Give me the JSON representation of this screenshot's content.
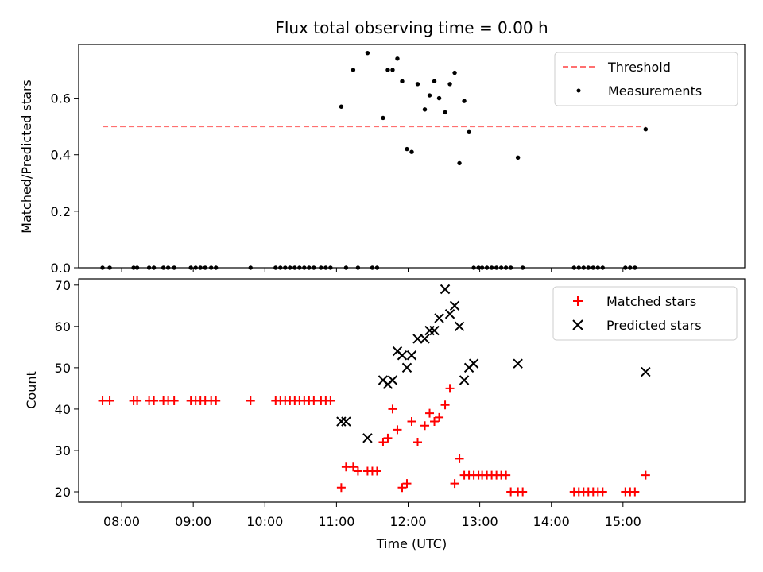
{
  "chart_data": [
    {
      "type": "scatter",
      "title": "Flux total observing time = 0.00 h",
      "xlabel": "",
      "ylabel": "Matched/Predicted stars",
      "ylim": [
        0,
        0.79
      ],
      "xlim": [
        "07:24",
        "16:42"
      ],
      "yticks": [
        "0.0",
        "0.2",
        "0.4",
        "0.6"
      ],
      "ytick_values": [
        0,
        0.2,
        0.4,
        0.6
      ],
      "threshold": {
        "label": "Threshold",
        "value": 0.5,
        "x_start": "07:44",
        "x_end": "15:19",
        "color": "#ff7070"
      },
      "legend": {
        "placement": "top-right",
        "entries": [
          "Threshold",
          "Measurements"
        ]
      },
      "series": [
        {
          "name": "Measurements",
          "color": "#000000",
          "marker": "dot",
          "x": [
            "07:44",
            "07:50",
            "08:10",
            "08:13",
            "08:23",
            "08:27",
            "08:35",
            "08:39",
            "08:44",
            "08:58",
            "09:02",
            "09:06",
            "09:10",
            "09:15",
            "09:19",
            "09:48",
            "10:09",
            "10:13",
            "10:17",
            "10:21",
            "10:25",
            "10:29",
            "10:33",
            "10:37",
            "10:41",
            "10:47",
            "10:51",
            "10:55",
            "11:04",
            "11:08",
            "11:14",
            "11:18",
            "11:26",
            "11:30",
            "11:34",
            "11:39",
            "11:43",
            "11:47",
            "11:51",
            "11:55",
            "11:59",
            "12:03",
            "12:08",
            "12:14",
            "12:18",
            "12:22",
            "12:26",
            "12:31",
            "12:35",
            "12:39",
            "12:43",
            "12:47",
            "12:51",
            "12:55",
            "12:59",
            "13:02",
            "13:06",
            "13:10",
            "13:14",
            "13:18",
            "13:22",
            "13:26",
            "13:32",
            "13:36",
            "14:19",
            "14:23",
            "14:27",
            "14:31",
            "14:35",
            "14:39",
            "14:43",
            "15:02",
            "15:06",
            "15:10",
            "15:19"
          ],
          "y": [
            0,
            0,
            0,
            0,
            0,
            0,
            0,
            0,
            0,
            0,
            0,
            0,
            0,
            0,
            0,
            0,
            0,
            0,
            0,
            0,
            0,
            0,
            0,
            0,
            0,
            0,
            0,
            0,
            0.57,
            0,
            0.7,
            0,
            0.76,
            0,
            0,
            0.53,
            0.7,
            0.7,
            0.74,
            0.66,
            0.42,
            0.41,
            0.65,
            0.56,
            0.61,
            0.66,
            0.6,
            0.55,
            0.65,
            0.69,
            0.37,
            0.59,
            0.48,
            0,
            0,
            0,
            0,
            0,
            0,
            0,
            0,
            0,
            0.39,
            0,
            0,
            0,
            0,
            0,
            0,
            0,
            0,
            0,
            0,
            0,
            0.49
          ]
        }
      ]
    },
    {
      "type": "scatter",
      "title": "",
      "xlabel": "Time (UTC)",
      "ylabel": "Count",
      "ylim": [
        17.5,
        71.5
      ],
      "xlim": [
        "07:24",
        "16:42"
      ],
      "xticks": [
        "08:00",
        "09:00",
        "10:00",
        "11:00",
        "12:00",
        "13:00",
        "14:00",
        "15:00"
      ],
      "yticks": [
        "20",
        "30",
        "40",
        "50",
        "60",
        "70"
      ],
      "ytick_values": [
        20,
        30,
        40,
        50,
        60,
        70
      ],
      "legend": {
        "placement": "top-right",
        "entries": [
          "Matched stars",
          "Predicted stars"
        ]
      },
      "series": [
        {
          "name": "Matched stars",
          "color": "#ff0000",
          "marker": "plus",
          "x": [
            "07:44",
            "07:50",
            "08:10",
            "08:13",
            "08:23",
            "08:27",
            "08:35",
            "08:39",
            "08:44",
            "08:58",
            "09:02",
            "09:06",
            "09:10",
            "09:15",
            "09:19",
            "09:48",
            "10:09",
            "10:13",
            "10:17",
            "10:21",
            "10:25",
            "10:29",
            "10:33",
            "10:37",
            "10:41",
            "10:47",
            "10:51",
            "10:55",
            "11:04",
            "11:08",
            "11:14",
            "11:18",
            "11:26",
            "11:30",
            "11:34",
            "11:39",
            "11:43",
            "11:47",
            "11:51",
            "11:55",
            "11:59",
            "12:03",
            "12:08",
            "12:14",
            "12:18",
            "12:22",
            "12:26",
            "12:31",
            "12:35",
            "12:39",
            "12:43",
            "12:47",
            "12:51",
            "12:55",
            "12:59",
            "13:02",
            "13:06",
            "13:10",
            "13:14",
            "13:18",
            "13:22",
            "13:26",
            "13:32",
            "13:36",
            "14:19",
            "14:23",
            "14:27",
            "14:31",
            "14:35",
            "14:39",
            "14:43",
            "15:02",
            "15:06",
            "15:10",
            "15:19"
          ],
          "y": [
            42,
            42,
            42,
            42,
            42,
            42,
            42,
            42,
            42,
            42,
            42,
            42,
            42,
            42,
            42,
            42,
            42,
            42,
            42,
            42,
            42,
            42,
            42,
            42,
            42,
            42,
            42,
            42,
            21,
            26,
            26,
            25,
            25,
            25,
            25,
            32,
            33,
            40,
            35,
            21,
            22,
            37,
            32,
            36,
            39,
            37,
            38,
            41,
            45,
            22,
            28,
            24,
            24,
            24,
            24,
            24,
            24,
            24,
            24,
            24,
            24,
            20,
            20,
            20,
            20,
            20,
            20,
            20,
            20,
            20,
            20,
            20,
            20,
            20,
            24
          ]
        },
        {
          "name": "Predicted stars",
          "color": "#000000",
          "marker": "x",
          "x": [
            "11:04",
            "11:08",
            "11:26",
            "11:39",
            "11:43",
            "11:47",
            "11:51",
            "11:55",
            "11:59",
            "12:03",
            "12:08",
            "12:14",
            "12:18",
            "12:22",
            "12:26",
            "12:31",
            "12:35",
            "12:39",
            "12:43",
            "12:47",
            "12:51",
            "12:55",
            "13:32",
            "15:19"
          ],
          "y": [
            37,
            37,
            33,
            47,
            46,
            47,
            54,
            53,
            50,
            53,
            57,
            57,
            59,
            59,
            62,
            69,
            63,
            65,
            60,
            47,
            50,
            51,
            51,
            49
          ]
        }
      ]
    }
  ]
}
